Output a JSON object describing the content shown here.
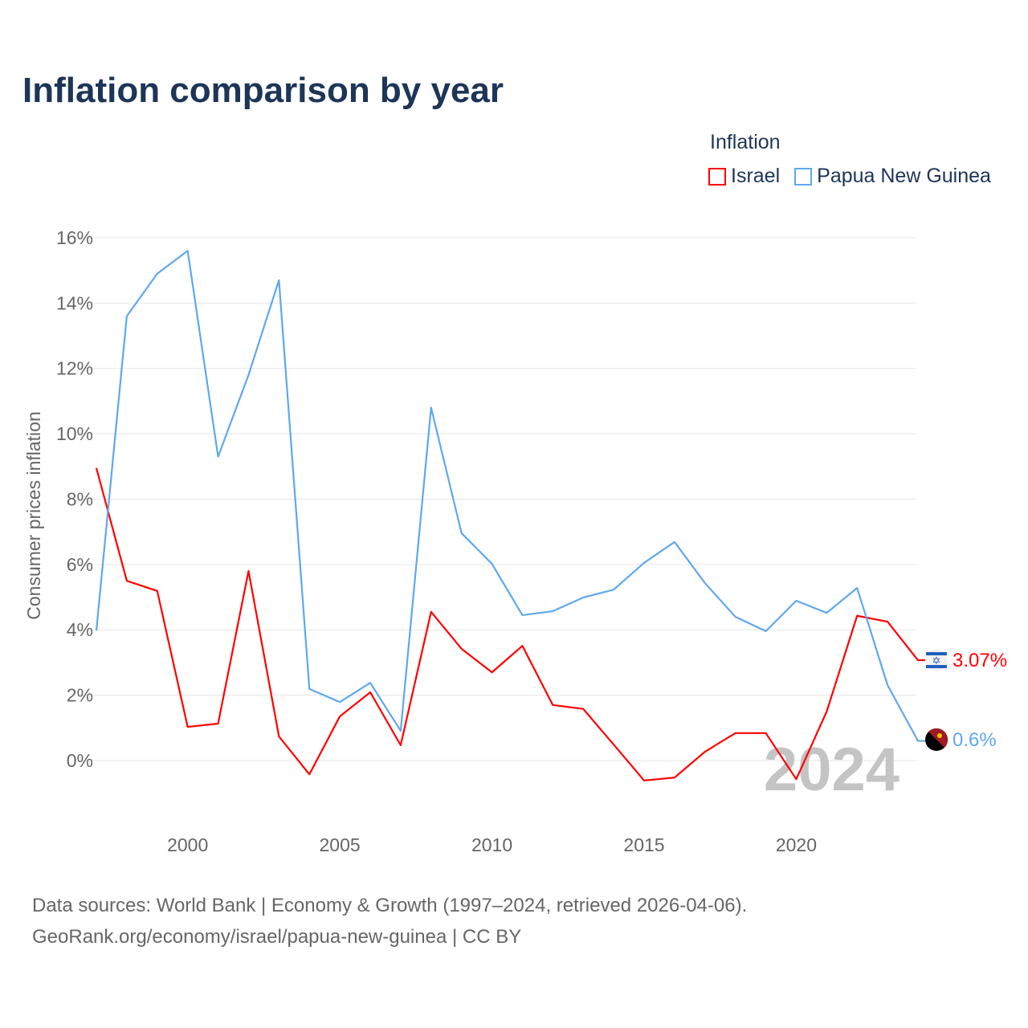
{
  "title": "Inflation comparison by year",
  "legend_title": "Inflation",
  "source_line1": "Data sources: World Bank | Economy & Growth (1997–2024, retrieved 2026-04-06).",
  "source_line2": "GeoRank.org/economy/israel/papua-new-guinea | CC BY",
  "chart_data": {
    "type": "line",
    "title": "Inflation comparison by year",
    "xlabel": "",
    "ylabel": "Consumer prices inflation",
    "x": [
      1997,
      1998,
      1999,
      2000,
      2001,
      2002,
      2003,
      2004,
      2005,
      2006,
      2007,
      2008,
      2009,
      2010,
      2011,
      2012,
      2013,
      2014,
      2015,
      2016,
      2017,
      2018,
      2019,
      2020,
      2021,
      2022,
      2023,
      2024
    ],
    "ylim": [
      -2,
      16
    ],
    "xlim": [
      1997,
      2024
    ],
    "yticks": [
      0,
      2,
      4,
      6,
      8,
      10,
      12,
      14,
      16
    ],
    "ytick_labels": [
      "0%",
      "2%",
      "4%",
      "6%",
      "8%",
      "10%",
      "12%",
      "14%",
      "16%"
    ],
    "xticks": [
      2000,
      2005,
      2010,
      2015,
      2020
    ],
    "xtick_labels": [
      "2000",
      "2005",
      "2010",
      "2015",
      "2020"
    ],
    "year_watermark": "2024",
    "legend_position": "top-right",
    "series": [
      {
        "name": "Israel",
        "color": "#ff0000",
        "end_label": "3.07%",
        "values": [
          8.95,
          5.5,
          5.19,
          1.03,
          1.13,
          5.8,
          0.74,
          -0.42,
          1.35,
          2.09,
          0.47,
          4.55,
          3.42,
          2.7,
          3.51,
          1.7,
          1.58,
          0.49,
          -0.61,
          -0.52,
          0.27,
          0.84,
          0.84,
          -0.57,
          1.5,
          4.43,
          4.25,
          3.07
        ]
      },
      {
        "name": "Papua New Guinea",
        "color": "#5fa8ed",
        "end_label": "0.6%",
        "values": [
          3.98,
          13.6,
          14.9,
          15.6,
          9.3,
          11.8,
          14.7,
          2.19,
          1.79,
          2.38,
          0.91,
          10.8,
          6.96,
          6.02,
          4.45,
          4.57,
          4.99,
          5.23,
          6.05,
          6.69,
          5.43,
          4.4,
          3.96,
          4.89,
          4.52,
          5.28,
          2.31,
          0.6
        ]
      }
    ]
  }
}
